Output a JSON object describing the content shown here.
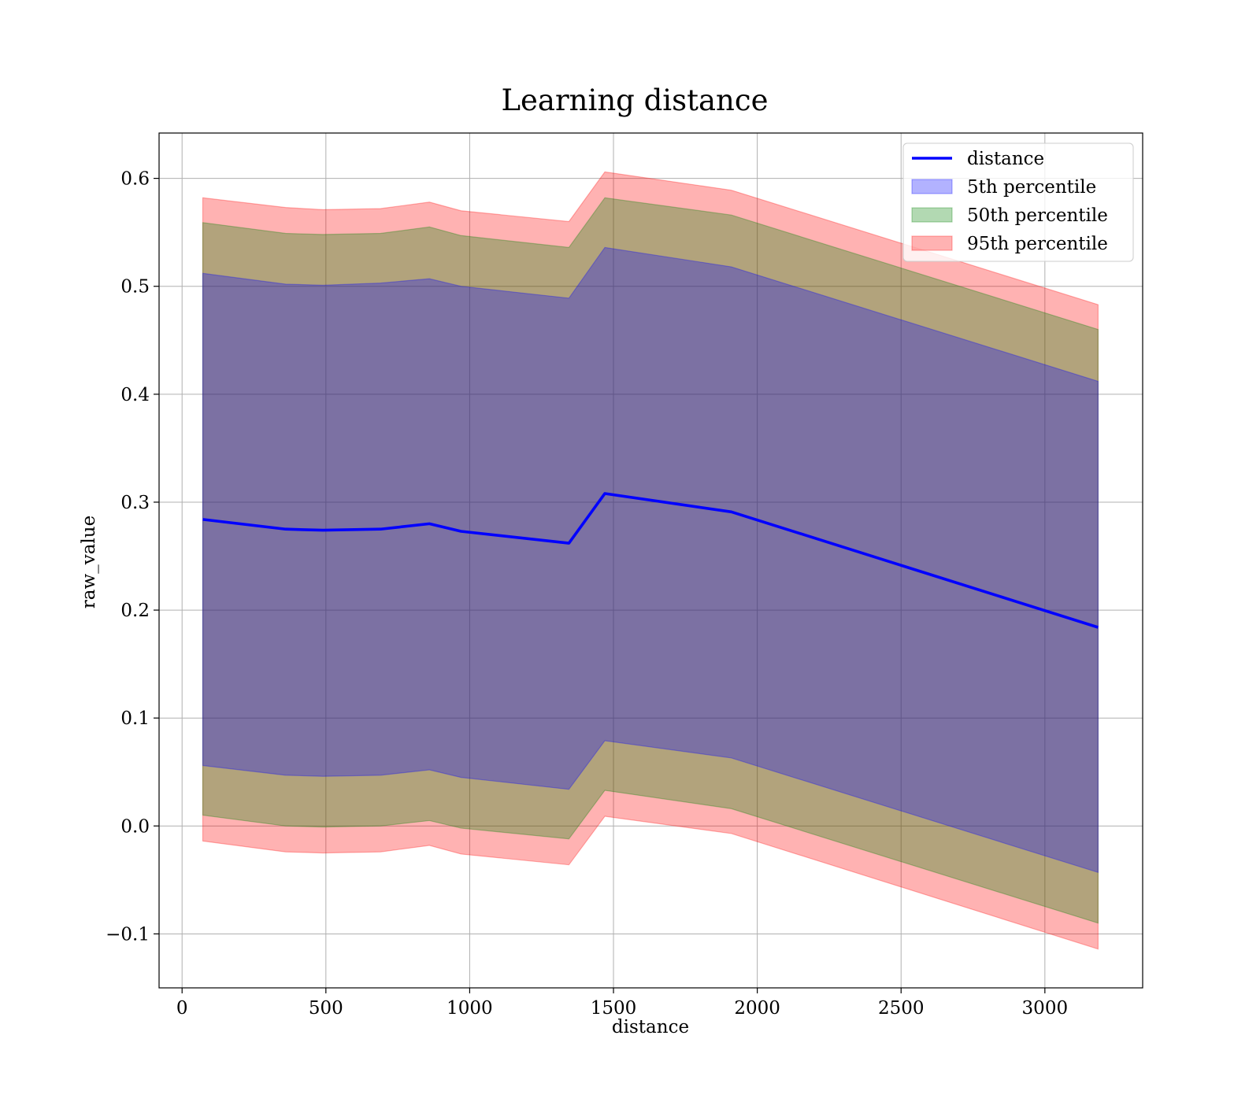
{
  "chart_data": {
    "type": "area",
    "title": "Learning distance",
    "xlabel": "distance",
    "ylabel": "raw_value",
    "xlim": [
      -80,
      3340
    ],
    "ylim": [
      -0.15,
      0.642
    ],
    "xticks": [
      0,
      500,
      1000,
      1500,
      2000,
      2500,
      3000
    ],
    "xtick_labels": [
      "0",
      "500",
      "1000",
      "1500",
      "2000",
      "2500",
      "3000"
    ],
    "yticks": [
      -0.1,
      0.0,
      0.1,
      0.2,
      0.3,
      0.4,
      0.5,
      0.6
    ],
    "ytick_labels": [
      "−0.1",
      "0.0",
      "0.1",
      "0.2",
      "0.3",
      "0.4",
      "0.5",
      "0.6"
    ],
    "grid": true,
    "legend_position": "top-right",
    "x": [
      72,
      360,
      490,
      690,
      860,
      970,
      1345,
      1470,
      1910,
      3185
    ],
    "line": {
      "name": "distance",
      "color": "#0000ff",
      "values": [
        0.284,
        0.275,
        0.274,
        0.275,
        0.28,
        0.273,
        0.262,
        0.308,
        0.291,
        0.184
      ]
    },
    "bands": [
      {
        "name": "95th percentile",
        "color": "#ff0000",
        "opacity": 0.3,
        "upper": [
          0.582,
          0.573,
          0.571,
          0.572,
          0.578,
          0.57,
          0.56,
          0.606,
          0.589,
          0.483
        ],
        "lower": [
          -0.014,
          -0.024,
          -0.025,
          -0.024,
          -0.018,
          -0.026,
          -0.036,
          0.009,
          -0.007,
          -0.114
        ]
      },
      {
        "name": "50th percentile",
        "color": "#008000",
        "opacity": 0.3,
        "upper": [
          0.559,
          0.549,
          0.548,
          0.549,
          0.555,
          0.547,
          0.536,
          0.582,
          0.566,
          0.46
        ],
        "lower": [
          0.01,
          0.0,
          -0.001,
          0.0,
          0.005,
          -0.002,
          -0.012,
          0.033,
          0.016,
          -0.09
        ]
      },
      {
        "name": "5th percentile",
        "color": "#0000ff",
        "opacity": 0.3,
        "upper": [
          0.512,
          0.502,
          0.501,
          0.503,
          0.507,
          0.5,
          0.489,
          0.536,
          0.518,
          0.412
        ],
        "lower": [
          0.056,
          0.047,
          0.046,
          0.047,
          0.052,
          0.045,
          0.034,
          0.079,
          0.063,
          -0.043
        ]
      }
    ],
    "legend": [
      {
        "label": "distance",
        "kind": "line",
        "color": "#0000ff"
      },
      {
        "label": "5th percentile",
        "kind": "patch",
        "color": "#0000ff"
      },
      {
        "label": "50th percentile",
        "kind": "patch",
        "color": "#008000"
      },
      {
        "label": "95th percentile",
        "kind": "patch",
        "color": "#ff0000"
      }
    ]
  }
}
